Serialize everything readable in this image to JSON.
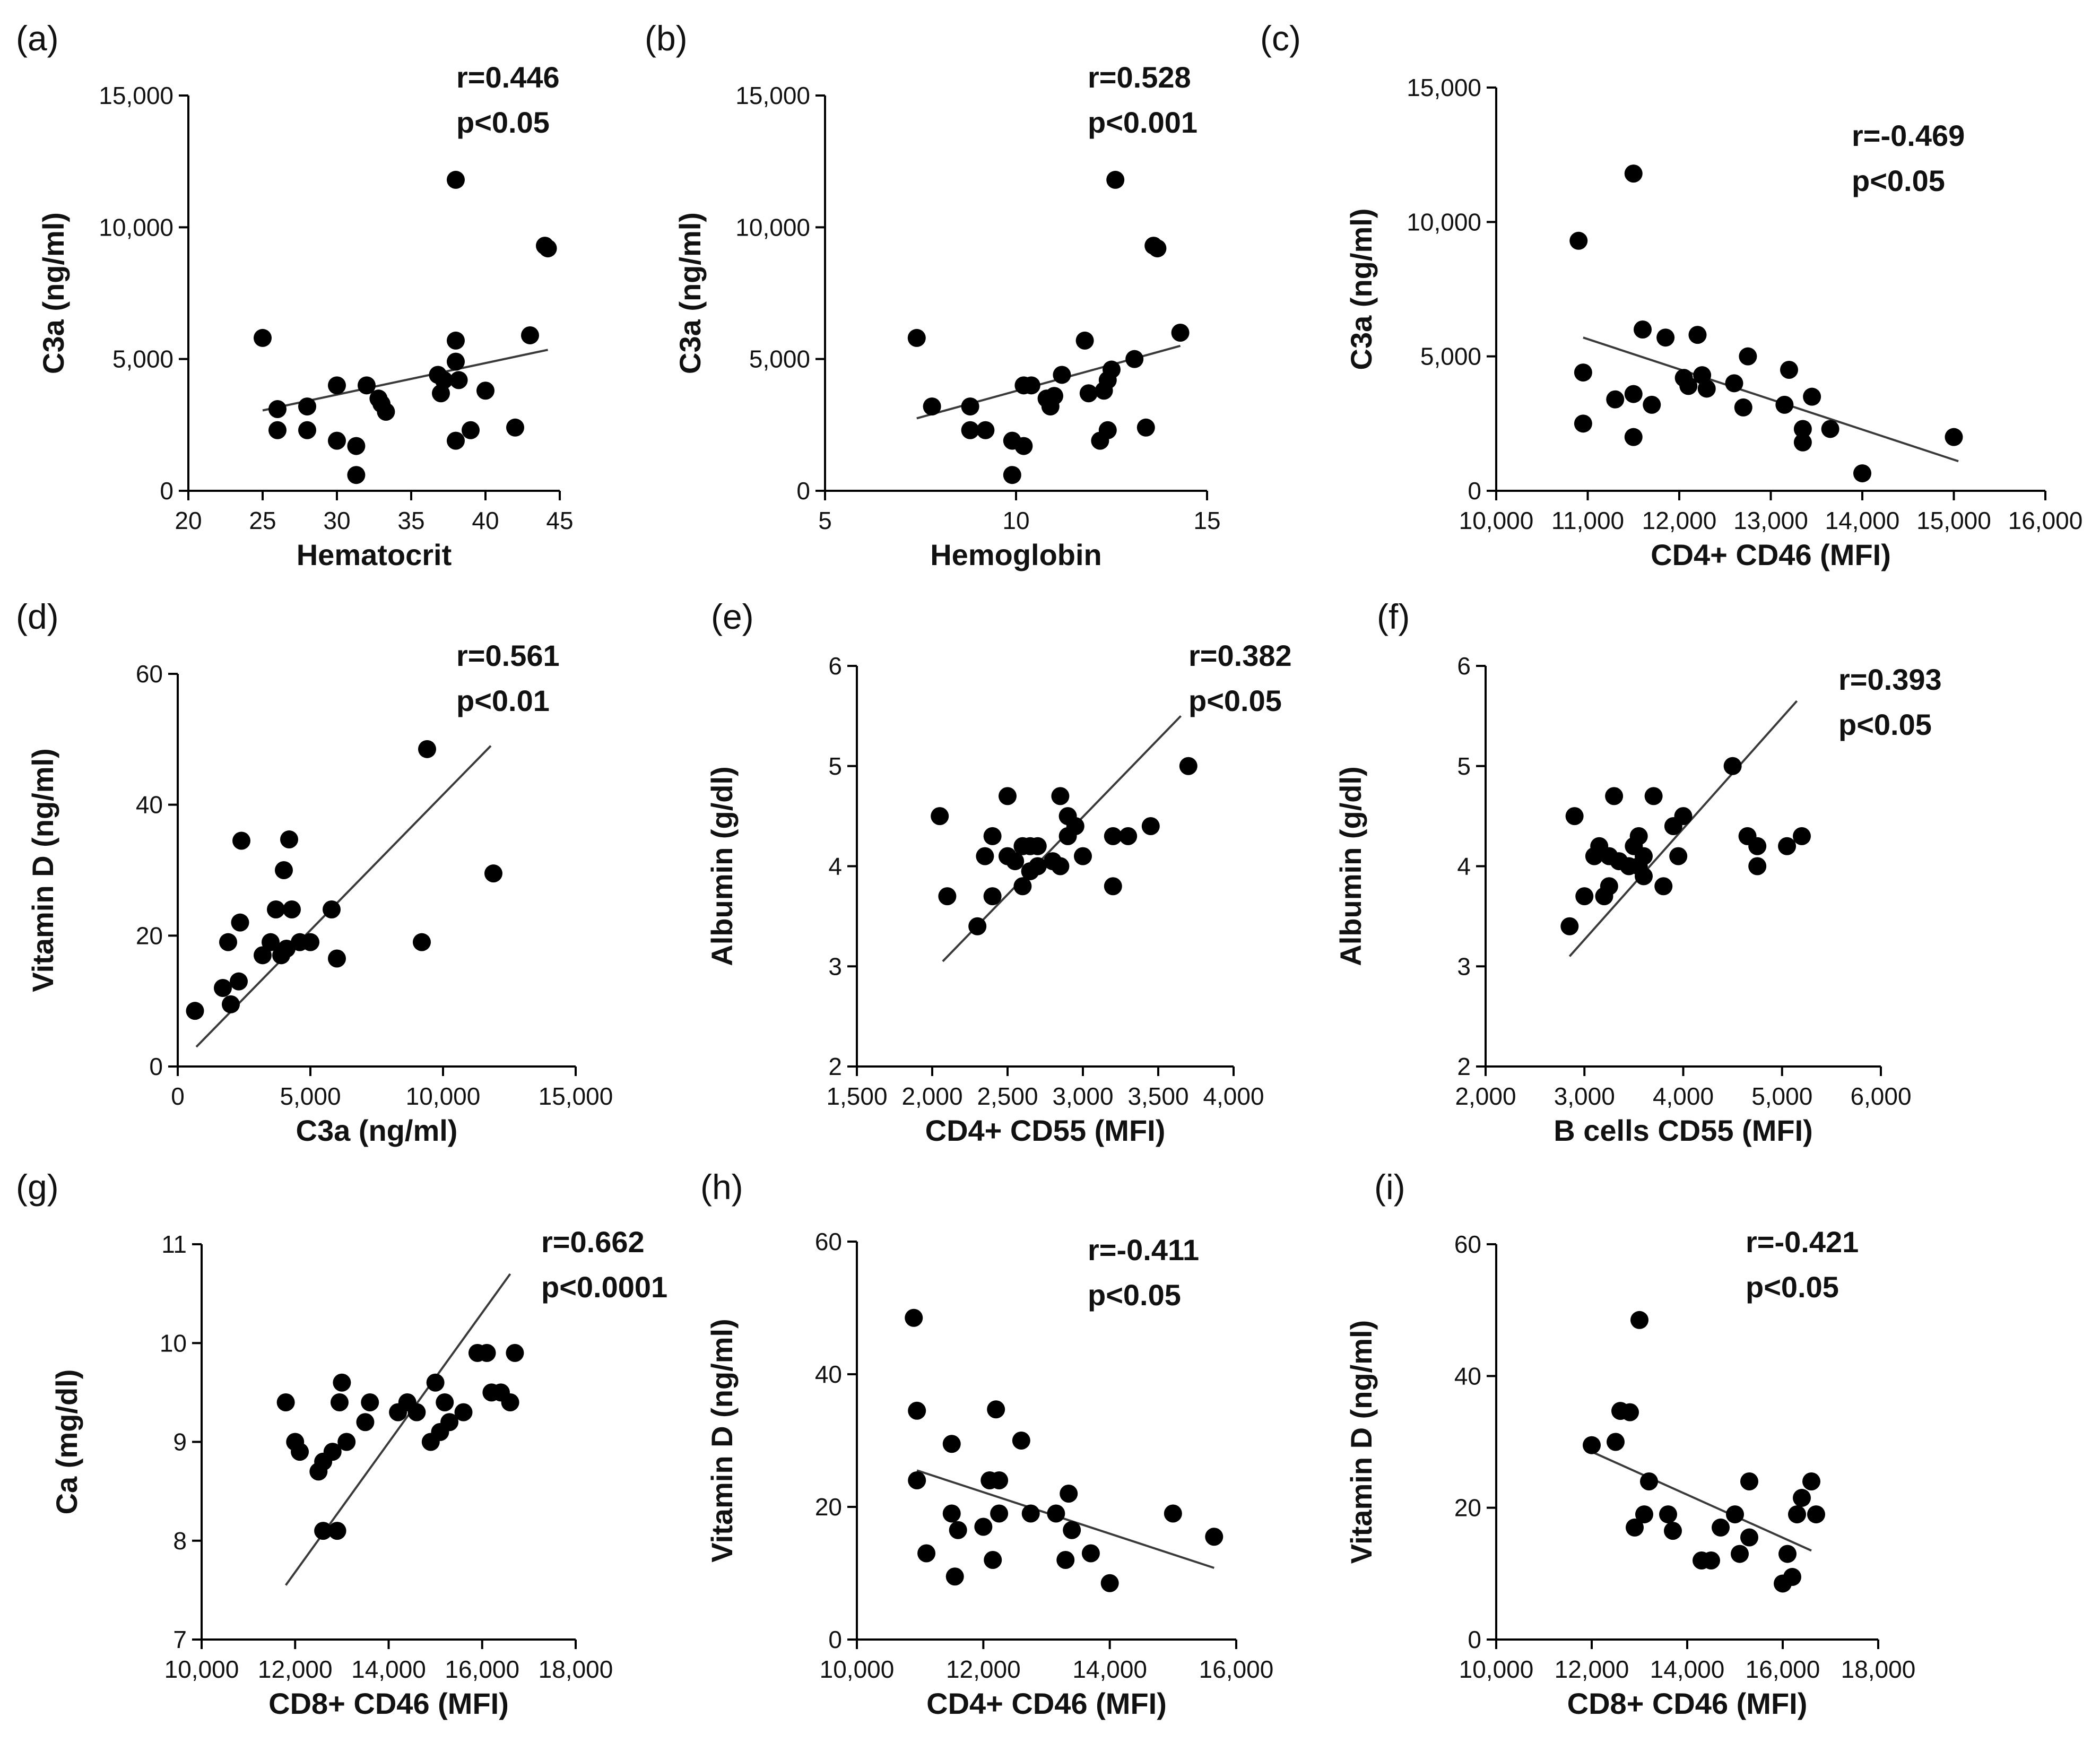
{
  "chart_data": [
    {
      "type": "scatter",
      "panel": "(a)",
      "r": "r=0.446",
      "p": "p<0.05",
      "xlabel": "Hematocrit",
      "ylabel": "C3a (ng/ml)",
      "xlim": [
        20,
        45
      ],
      "ylim": [
        0,
        15000
      ],
      "xticks": [
        20,
        25,
        30,
        35,
        40,
        45
      ],
      "xtick_labels": [
        "20",
        "25",
        "30",
        "35",
        "40",
        "45"
      ],
      "yticks": [
        0,
        5000,
        10000,
        15000
      ],
      "ytick_labels": [
        "0",
        "5,000",
        "10,000",
        "15,000"
      ],
      "fit": {
        "x": [
          25,
          44.2
        ],
        "y": [
          3050,
          5350
        ]
      },
      "points": [
        [
          25,
          5800
        ],
        [
          26,
          3100
        ],
        [
          26,
          2300
        ],
        [
          28,
          3200
        ],
        [
          28,
          2300
        ],
        [
          30,
          4000
        ],
        [
          30,
          1900
        ],
        [
          31.3,
          1700
        ],
        [
          31.3,
          600
        ],
        [
          32,
          4000
        ],
        [
          32.8,
          3500
        ],
        [
          33,
          3300
        ],
        [
          33.3,
          3000
        ],
        [
          36.8,
          4400
        ],
        [
          37,
          3700
        ],
        [
          37.2,
          4200
        ],
        [
          38,
          11800
        ],
        [
          38,
          5700
        ],
        [
          38,
          4900
        ],
        [
          38.2,
          4200
        ],
        [
          38,
          1900
        ],
        [
          39,
          2300
        ],
        [
          40,
          3800
        ],
        [
          42,
          2400
        ],
        [
          43,
          5900
        ],
        [
          44,
          9300
        ],
        [
          44.2,
          9200
        ]
      ]
    },
    {
      "type": "scatter",
      "panel": "(b)",
      "r": "r=0.528",
      "p": "p<0.001",
      "xlabel": "Hemoglobin",
      "ylabel": "C3a (ng/ml)",
      "xlim": [
        5,
        15
      ],
      "ylim": [
        0,
        15000
      ],
      "xticks": [
        5,
        10,
        15
      ],
      "xtick_labels": [
        "5",
        "10",
        "15"
      ],
      "yticks": [
        0,
        5000,
        10000,
        15000
      ],
      "ytick_labels": [
        "0",
        "5,000",
        "10,000",
        "15,000"
      ],
      "fit": {
        "x": [
          7.4,
          14.3
        ],
        "y": [
          2750,
          5500
        ]
      },
      "points": [
        [
          7.4,
          5800
        ],
        [
          7.8,
          3200
        ],
        [
          8.8,
          3200
        ],
        [
          8.8,
          2300
        ],
        [
          9.2,
          2300
        ],
        [
          9.9,
          1900
        ],
        [
          10.2,
          1700
        ],
        [
          9.9,
          600
        ],
        [
          10.2,
          4000
        ],
        [
          10.4,
          4000
        ],
        [
          10.8,
          3500
        ],
        [
          10.9,
          3200
        ],
        [
          11,
          3600
        ],
        [
          11.2,
          4400
        ],
        [
          11.8,
          5700
        ],
        [
          11.9,
          3700
        ],
        [
          12.3,
          3800
        ],
        [
          12.4,
          4200
        ],
        [
          12.5,
          4600
        ],
        [
          12.2,
          1900
        ],
        [
          12.4,
          2300
        ],
        [
          12.6,
          11800
        ],
        [
          13.1,
          5000
        ],
        [
          13.6,
          9300
        ],
        [
          13.7,
          9200
        ],
        [
          13.4,
          2400
        ],
        [
          14.3,
          6000
        ]
      ]
    },
    {
      "type": "scatter",
      "panel": "(c)",
      "r": "r=-0.469",
      "p": "p<0.05",
      "xlabel": "CD4+ CD46 (MFI)",
      "ylabel": "C3a (ng/ml)",
      "xlim": [
        10000,
        16000
      ],
      "ylim": [
        0,
        15000
      ],
      "xticks": [
        10000,
        11000,
        12000,
        13000,
        14000,
        15000,
        16000
      ],
      "xtick_labels": [
        "10,000",
        "11,000",
        "12,000",
        "13,000",
        "14,000",
        "15,000",
        "16,000"
      ],
      "yticks": [
        0,
        5000,
        10000,
        15000
      ],
      "ytick_labels": [
        "0",
        "5,000",
        "10,000",
        "15,000"
      ],
      "fit": {
        "x": [
          10950,
          15050
        ],
        "y": [
          5700,
          1100
        ]
      },
      "points": [
        [
          10900,
          9300
        ],
        [
          10950,
          4400
        ],
        [
          10950,
          2500
        ],
        [
          11300,
          3400
        ],
        [
          11500,
          3600
        ],
        [
          11500,
          2000
        ],
        [
          11500,
          11800
        ],
        [
          11600,
          6000
        ],
        [
          11700,
          3200
        ],
        [
          11850,
          5700
        ],
        [
          12050,
          4200
        ],
        [
          12100,
          3900
        ],
        [
          12200,
          5800
        ],
        [
          12250,
          4300
        ],
        [
          12300,
          3800
        ],
        [
          12600,
          4000
        ],
        [
          12700,
          3100
        ],
        [
          12750,
          5000
        ],
        [
          13150,
          3200
        ],
        [
          13200,
          4500
        ],
        [
          13350,
          2300
        ],
        [
          13350,
          1800
        ],
        [
          13450,
          3500
        ],
        [
          13650,
          2300
        ],
        [
          14000,
          650
        ],
        [
          15000,
          2000
        ]
      ]
    },
    {
      "type": "scatter",
      "panel": "(d)",
      "r": "r=0.561",
      "p": "p<0.01",
      "xlabel": "C3a (ng/ml)",
      "ylabel": "Vitamin D (ng/ml)",
      "xlim": [
        0,
        15000
      ],
      "ylim": [
        0,
        60
      ],
      "xticks": [
        0,
        5000,
        10000,
        15000
      ],
      "xtick_labels": [
        "0",
        "5,000",
        "10,000",
        "15,000"
      ],
      "yticks": [
        0,
        20,
        40,
        60
      ],
      "ytick_labels": [
        "0",
        "20",
        "40",
        "60"
      ],
      "fit": {
        "x": [
          700,
          11800
        ],
        "y": [
          3,
          49
        ]
      },
      "points": [
        [
          650,
          8.5
        ],
        [
          1700,
          12
        ],
        [
          1900,
          19
        ],
        [
          2000,
          9.5
        ],
        [
          2300,
          13
        ],
        [
          2350,
          22
        ],
        [
          2400,
          34.5
        ],
        [
          3200,
          17
        ],
        [
          3500,
          19
        ],
        [
          3700,
          24
        ],
        [
          3900,
          17
        ],
        [
          4000,
          30
        ],
        [
          4100,
          18
        ],
        [
          4200,
          34.7
        ],
        [
          4300,
          24
        ],
        [
          4600,
          19
        ],
        [
          5000,
          19
        ],
        [
          5800,
          24
        ],
        [
          6000,
          16.5
        ],
        [
          9200,
          19
        ],
        [
          9400,
          48.5
        ],
        [
          11900,
          29.5
        ]
      ]
    },
    {
      "type": "scatter",
      "panel": "(e)",
      "r": "r=0.382",
      "p": "p<0.05",
      "xlabel": "CD4+ CD55 (MFI)",
      "ylabel": "Albumin (g/dl)",
      "xlim": [
        1500,
        4000
      ],
      "ylim": [
        2,
        6
      ],
      "xticks": [
        1500,
        2000,
        2500,
        3000,
        3500,
        4000
      ],
      "xtick_labels": [
        "1,500",
        "2,000",
        "2,500",
        "3,000",
        "3,500",
        "4,000"
      ],
      "yticks": [
        2,
        3,
        4,
        5,
        6
      ],
      "ytick_labels": [
        "2",
        "3",
        "4",
        "5",
        "6"
      ],
      "fit": {
        "x": [
          2070,
          3650
        ],
        "y": [
          3.05,
          5.5
        ]
      },
      "points": [
        [
          2050,
          4.5
        ],
        [
          2100,
          3.7
        ],
        [
          2300,
          3.4
        ],
        [
          2350,
          4.1
        ],
        [
          2400,
          3.7
        ],
        [
          2400,
          4.3
        ],
        [
          2500,
          4.7
        ],
        [
          2500,
          4.1
        ],
        [
          2550,
          4.05
        ],
        [
          2600,
          3.8
        ],
        [
          2600,
          4.2
        ],
        [
          2650,
          4.2
        ],
        [
          2650,
          3.95
        ],
        [
          2700,
          4.0
        ],
        [
          2700,
          4.2
        ],
        [
          2800,
          4.05
        ],
        [
          2850,
          4.7
        ],
        [
          2850,
          4.0
        ],
        [
          2900,
          4.5
        ],
        [
          2900,
          4.3
        ],
        [
          2950,
          4.4
        ],
        [
          3000,
          4.1
        ],
        [
          3200,
          4.3
        ],
        [
          3200,
          3.8
        ],
        [
          3300,
          4.3
        ],
        [
          3450,
          4.4
        ],
        [
          3700,
          5.0
        ]
      ]
    },
    {
      "type": "scatter",
      "panel": "(f)",
      "r": "r=0.393",
      "p": "p<0.05",
      "xlabel": "B cells CD55 (MFI)",
      "ylabel": "Albumin (g/dl)",
      "xlim": [
        2000,
        6000
      ],
      "ylim": [
        2,
        6
      ],
      "xticks": [
        2000,
        3000,
        4000,
        5000,
        6000
      ],
      "xtick_labels": [
        "2,000",
        "3,000",
        "4,000",
        "5,000",
        "6,000"
      ],
      "yticks": [
        2,
        3,
        4,
        5,
        6
      ],
      "ytick_labels": [
        "2",
        "3",
        "4",
        "5",
        "6"
      ],
      "fit": {
        "x": [
          2850,
          5150
        ],
        "y": [
          3.1,
          5.65
        ]
      },
      "points": [
        [
          2850,
          3.4
        ],
        [
          2900,
          4.5
        ],
        [
          3000,
          3.7
        ],
        [
          3100,
          4.1
        ],
        [
          3150,
          4.2
        ],
        [
          3200,
          3.7
        ],
        [
          3250,
          3.8
        ],
        [
          3250,
          4.1
        ],
        [
          3300,
          4.7
        ],
        [
          3350,
          4.05
        ],
        [
          3450,
          4.0
        ],
        [
          3500,
          4.2
        ],
        [
          3550,
          4.3
        ],
        [
          3550,
          4.0
        ],
        [
          3600,
          3.9
        ],
        [
          3600,
          4.1
        ],
        [
          3700,
          4.7
        ],
        [
          3800,
          3.8
        ],
        [
          3900,
          4.4
        ],
        [
          3950,
          4.1
        ],
        [
          4000,
          4.5
        ],
        [
          4500,
          5.0
        ],
        [
          4650,
          4.3
        ],
        [
          4750,
          4.0
        ],
        [
          4750,
          4.2
        ],
        [
          5050,
          4.2
        ],
        [
          5200,
          4.3
        ]
      ]
    },
    {
      "type": "scatter",
      "panel": "(g)",
      "r": "r=0.662",
      "p": "p<0.0001",
      "xlabel": "CD8+ CD46 (MFI)",
      "ylabel": "Ca (mg/dl)",
      "xlim": [
        10000,
        18000
      ],
      "ylim": [
        7,
        11
      ],
      "xticks": [
        10000,
        12000,
        14000,
        16000,
        18000
      ],
      "xtick_labels": [
        "10,000",
        "12,000",
        "14,000",
        "16,000",
        "18,000"
      ],
      "yticks": [
        7,
        8,
        9,
        10,
        11
      ],
      "ytick_labels": [
        "7",
        "8",
        "9",
        "10",
        "11"
      ],
      "fit": {
        "x": [
          11800,
          16600
        ],
        "y": [
          7.55,
          10.7
        ]
      },
      "points": [
        [
          11800,
          9.4
        ],
        [
          12000,
          9.0
        ],
        [
          12100,
          8.9
        ],
        [
          12500,
          8.7
        ],
        [
          12600,
          8.8
        ],
        [
          12600,
          8.1
        ],
        [
          12800,
          8.9
        ],
        [
          12900,
          8.1
        ],
        [
          12950,
          9.4
        ],
        [
          13000,
          9.6
        ],
        [
          13100,
          9.0
        ],
        [
          13500,
          9.2
        ],
        [
          13600,
          9.4
        ],
        [
          14200,
          9.3
        ],
        [
          14400,
          9.4
        ],
        [
          14600,
          9.3
        ],
        [
          14900,
          9.0
        ],
        [
          15000,
          9.6
        ],
        [
          15100,
          9.1
        ],
        [
          15200,
          9.4
        ],
        [
          15300,
          9.2
        ],
        [
          15600,
          9.3
        ],
        [
          15900,
          9.9
        ],
        [
          16100,
          9.9
        ],
        [
          16200,
          9.5
        ],
        [
          16400,
          9.5
        ],
        [
          16600,
          9.4
        ],
        [
          16700,
          9.9
        ]
      ]
    },
    {
      "type": "scatter",
      "panel": "(h)",
      "r": "r=-0.411",
      "p": "p<0.05",
      "xlabel": "CD4+ CD46 (MFI)",
      "ylabel": "Vitamin D (ng/ml)",
      "xlim": [
        10000,
        16000
      ],
      "ylim": [
        0,
        60
      ],
      "xticks": [
        10000,
        12000,
        14000,
        16000
      ],
      "xtick_labels": [
        "10,000",
        "12,000",
        "14,000",
        "16,000"
      ],
      "yticks": [
        0,
        20,
        40,
        60
      ],
      "ytick_labels": [
        "0",
        "20",
        "40",
        "60"
      ],
      "fit": {
        "x": [
          10950,
          15650
        ],
        "y": [
          25.5,
          10.8
        ]
      },
      "points": [
        [
          10900,
          48.5
        ],
        [
          10950,
          34.5
        ],
        [
          10950,
          24
        ],
        [
          11100,
          13
        ],
        [
          11500,
          29.5
        ],
        [
          11500,
          19
        ],
        [
          11550,
          9.5
        ],
        [
          11600,
          16.5
        ],
        [
          12000,
          17
        ],
        [
          12100,
          24
        ],
        [
          12150,
          12
        ],
        [
          12200,
          34.7
        ],
        [
          12250,
          24
        ],
        [
          12250,
          19
        ],
        [
          12600,
          30
        ],
        [
          12750,
          19
        ],
        [
          13150,
          19
        ],
        [
          13300,
          12
        ],
        [
          13350,
          22
        ],
        [
          13400,
          16.5
        ],
        [
          13700,
          13
        ],
        [
          14000,
          8.5
        ],
        [
          15000,
          19
        ],
        [
          15650,
          15.5
        ]
      ]
    },
    {
      "type": "scatter",
      "panel": "(i)",
      "r": "r=-0.421",
      "p": "p<0.05",
      "xlabel": "CD8+ CD46 (MFI)",
      "ylabel": "Vitamin D (ng/ml)",
      "xlim": [
        10000,
        18000
      ],
      "ylim": [
        0,
        60
      ],
      "xticks": [
        10000,
        12000,
        14000,
        16000,
        18000
      ],
      "xtick_labels": [
        "10,000",
        "12,000",
        "14,000",
        "16,000",
        "18,000"
      ],
      "yticks": [
        0,
        20,
        40,
        60
      ],
      "ytick_labels": [
        "0",
        "20",
        "40",
        "60"
      ],
      "fit": {
        "x": [
          12000,
          16600
        ],
        "y": [
          28.5,
          13.5
        ]
      },
      "points": [
        [
          12000,
          29.5
        ],
        [
          12500,
          30
        ],
        [
          12600,
          34.7
        ],
        [
          12800,
          34.5
        ],
        [
          12900,
          17
        ],
        [
          13000,
          48.5
        ],
        [
          13100,
          19
        ],
        [
          13200,
          24
        ],
        [
          13600,
          19
        ],
        [
          13700,
          16.5
        ],
        [
          14300,
          12
        ],
        [
          14500,
          12
        ],
        [
          14700,
          17
        ],
        [
          15000,
          19
        ],
        [
          15100,
          13
        ],
        [
          15300,
          24
        ],
        [
          15300,
          15.5
        ],
        [
          16000,
          8.5
        ],
        [
          16100,
          13
        ],
        [
          16200,
          9.5
        ],
        [
          16300,
          19
        ],
        [
          16400,
          21.5
        ],
        [
          16600,
          24
        ],
        [
          16700,
          19
        ]
      ]
    }
  ]
}
